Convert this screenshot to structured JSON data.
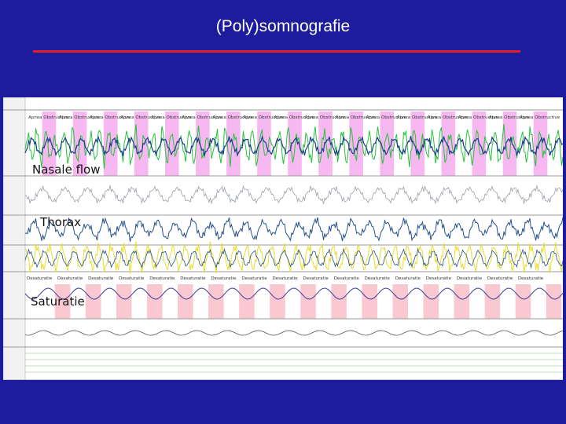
{
  "slide": {
    "title": "(Poly)somnografie",
    "accent_color": "#e41e2a",
    "background_color": "#1c1c9c"
  },
  "psg_view": {
    "channel_labels": [
      "Nasale flow",
      "Thorax",
      "Saturatie"
    ],
    "colors": {
      "apnea_shade": "#f7b8f2",
      "desat_shade": "#f9c8d0",
      "flow_green": "#27c23a",
      "flow_blue": "#1a3b8c",
      "thorax_gray": "#9aa0a8",
      "respiratory_blue": "#24508a",
      "abdomen_yellow": "#e6de2a",
      "spo2_line": "#3a3a9a"
    },
    "event_annotation_label": "Apnea Obstructive",
    "desat_annotation_label": "Desaturatie",
    "apnea_event_count": 17,
    "desat_event_count": 17
  }
}
